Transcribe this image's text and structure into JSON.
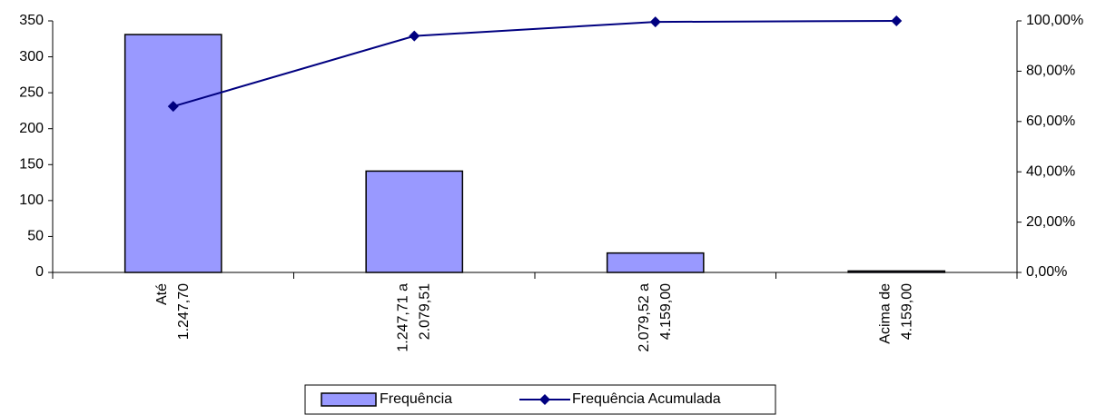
{
  "chart_data": {
    "type": "bar",
    "categories": [
      [
        "Até",
        "1.247,70"
      ],
      [
        "1.247,71 a",
        "2.079,51"
      ],
      [
        "2.079,52 a",
        "4.159,00"
      ],
      [
        "Acima de",
        "4.159,00"
      ]
    ],
    "series": [
      {
        "name": "Frequência",
        "type": "bar",
        "color": "#9999ff",
        "values": [
          331,
          141,
          27,
          2
        ]
      },
      {
        "name": "Frequência Acumulada",
        "type": "line",
        "axis": "y2",
        "color": "#000080",
        "values": [
          66,
          94,
          99.6,
          100
        ]
      }
    ],
    "ylim": [
      0,
      350
    ],
    "yticks": [
      0,
      50,
      100,
      150,
      200,
      250,
      300,
      350
    ],
    "y2lim": [
      0,
      100
    ],
    "y2ticks": [
      {
        "value": 0,
        "label": "0,00%"
      },
      {
        "value": 20,
        "label": "20,00%"
      },
      {
        "value": 40,
        "label": "40,00%"
      },
      {
        "value": 60,
        "label": "60,00%"
      },
      {
        "value": 80,
        "label": "80,00%"
      },
      {
        "value": 100,
        "label": "100,00%"
      }
    ],
    "legend": "bottom"
  }
}
